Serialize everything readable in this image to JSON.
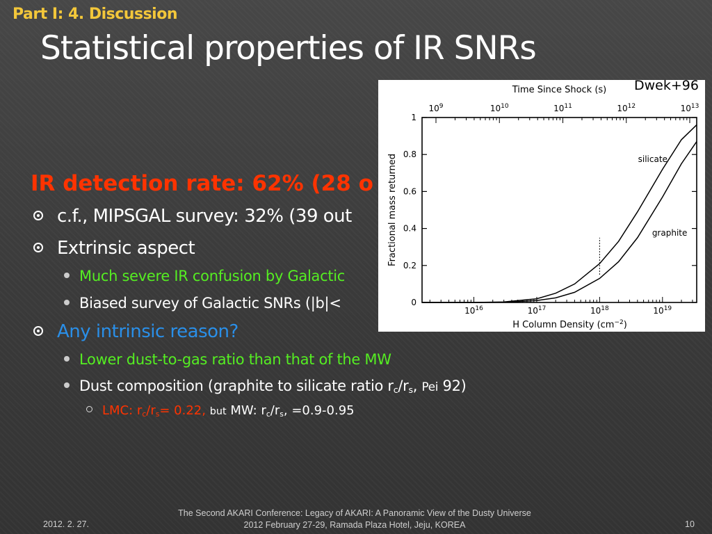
{
  "slide": {
    "section": "Part I: 4. Discussion",
    "title": "Statistical properties of IR SNRs",
    "highlight": "IR detection rate: 62% (28 o",
    "bullets": {
      "b1": "c.f., MIPSGAL survey: 32% (39 out",
      "b2": "Extrinsic aspect",
      "b2a": "Much severe IR confusion by Galactic",
      "b2b": "Biased survey of Galactic SNRs (|b|<",
      "b3": "Any intrinsic reason?",
      "b3a": "Lower dust-to-gas ratio than that of the MW",
      "b3b_pre": "Dust composition (graphite to silicate ratio r",
      "b3b_sub1": "c",
      "b3b_mid": "/r",
      "b3b_sub2": "s",
      "b3b_comma": ",",
      "b3b_ref": "Pei",
      "b3b_post": "92)",
      "b3b1_lmc_pre": "LMC: r",
      "b3b1_sub1": "c",
      "b3b1_mid": "/r",
      "b3b1_sub2": "s",
      "b3b1_val": "= 0.22,",
      "b3b1_but": "but",
      "b3b1_mw": "MW: r",
      "b3b1_sub3": "c",
      "b3b1_mid2": "/r",
      "b3b1_sub4": "s",
      "b3b1_end": ", =0.9-0.95"
    },
    "figure_credit": "Dwek+96",
    "footer": {
      "line1": "The Second AKARI Conference: Legacy of AKARI: A Panoramic View of the Dusty Universe",
      "line2": "2012 February 27-29, Ramada Plaza Hotel, Jeju, KOREA",
      "date": "2012. 2. 27.",
      "page": "10"
    },
    "colors": {
      "accent": "#f3c73a",
      "alert": "#ff3300",
      "green": "#55ee22",
      "blue": "#2a8fe8"
    }
  },
  "chart_data": {
    "type": "line",
    "xlabel": "H Column Density (cm",
    "xlabel_exp": "−2",
    "xlabel_close": ")",
    "top_xlabel": "Time Since Shock (s)",
    "ylabel": "Fractional mass returned",
    "x_scale": "log",
    "xlim": [
      1500000000000000.0,
      3.5e+19
    ],
    "ylim": [
      0,
      1
    ],
    "x_ticks": [
      1e+16,
      1e+17,
      1e+18,
      1e+19
    ],
    "x_tick_labels": [
      {
        "base": "10",
        "exp": "16"
      },
      {
        "base": "10",
        "exp": "17"
      },
      {
        "base": "10",
        "exp": "18"
      },
      {
        "base": "10",
        "exp": "19"
      }
    ],
    "y_ticks": [
      0,
      0.2,
      0.4,
      0.6,
      0.8,
      1
    ],
    "y_tick_labels": [
      "0",
      "0.2",
      "0.4",
      "0.6",
      "0.8",
      "1"
    ],
    "top_ticks": [
      {
        "base": "10",
        "exp": "9"
      },
      {
        "base": "10",
        "exp": "10"
      },
      {
        "base": "10",
        "exp": "11"
      },
      {
        "base": "10",
        "exp": "12"
      },
      {
        "base": "10",
        "exp": "13"
      }
    ],
    "series": [
      {
        "name": "silicate",
        "x": [
          1500000000000000.0,
          1e+16,
          3e+16,
          1e+17,
          2e+17,
          4e+17,
          1e+18,
          2e+18,
          4e+18,
          1e+19,
          2e+19,
          3.5e+19
        ],
        "y": [
          0,
          0,
          0.003,
          0.02,
          0.05,
          0.1,
          0.21,
          0.33,
          0.49,
          0.72,
          0.88,
          0.96
        ]
      },
      {
        "name": "graphite",
        "x": [
          1500000000000000.0,
          1e+16,
          3e+16,
          1e+17,
          2e+17,
          4e+17,
          1e+18,
          2e+18,
          4e+18,
          1e+19,
          2e+19,
          3.5e+19
        ],
        "y": [
          0,
          0,
          0.001,
          0.01,
          0.025,
          0.055,
          0.13,
          0.22,
          0.35,
          0.57,
          0.75,
          0.87
        ]
      }
    ],
    "marker_x": 1e+18,
    "marker_y": [
      0.15,
      0.35
    ]
  }
}
